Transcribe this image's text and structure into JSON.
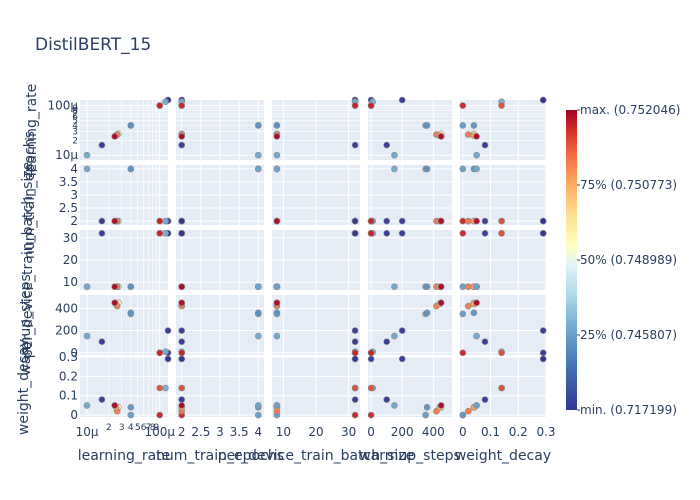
{
  "chart_data": {
    "type": "scatter",
    "subtype": "scatter-matrix",
    "title": "DistilBERT_15",
    "dimensions": [
      {
        "name": "learning_rate",
        "scale": "log",
        "range": [
          8e-06,
          0.00013
        ],
        "ticks": [
          {
            "v": 1e-05,
            "label": "10μ"
          },
          {
            "v": 0.0001,
            "label": "100μ"
          }
        ],
        "minor_ticks": [
          {
            "v": 2e-05,
            "label": "2"
          },
          {
            "v": 3e-05,
            "label": "3"
          },
          {
            "v": 4e-05,
            "label": "4"
          },
          {
            "v": 5e-05,
            "label": "5"
          },
          {
            "v": 6e-05,
            "label": "6"
          },
          {
            "v": 7e-05,
            "label": "7"
          },
          {
            "v": 8e-05,
            "label": "8"
          },
          {
            "v": 9e-05,
            "label": "9"
          }
        ]
      },
      {
        "name": "num_train_epochs",
        "scale": "linear",
        "range": [
          1.85,
          4.15
        ],
        "ticks": [
          {
            "v": 2,
            "label": "2"
          },
          {
            "v": 2.5,
            "label": "2.5"
          },
          {
            "v": 3,
            "label": "3"
          },
          {
            "v": 3.5,
            "label": "3.5"
          },
          {
            "v": 4,
            "label": "4"
          }
        ]
      },
      {
        "name": "per_device_train_batch_size",
        "scale": "linear",
        "range": [
          6.5,
          33.5
        ],
        "ticks": [
          {
            "v": 10,
            "label": "10"
          },
          {
            "v": 20,
            "label": "20"
          },
          {
            "v": 30,
            "label": "30"
          }
        ]
      },
      {
        "name": "warmup_steps",
        "scale": "linear",
        "range": [
          -20,
          520
        ],
        "ticks": [
          {
            "v": 0,
            "label": "0"
          },
          {
            "v": 200,
            "label": "200"
          },
          {
            "v": 400,
            "label": "400"
          }
        ]
      },
      {
        "name": "weight_decay",
        "scale": "linear",
        "range": [
          -0.01,
          0.3
        ],
        "ticks": [
          {
            "v": 0,
            "label": "0"
          },
          {
            "v": 0.1,
            "label": "0.1"
          },
          {
            "v": 0.2,
            "label": "0.2"
          },
          {
            "v": 0.3,
            "label": "0.3"
          }
        ]
      }
    ],
    "colorbar": {
      "min": 0.717199,
      "max": 0.752046,
      "labels": [
        {
          "frac": 1.0,
          "label": "max. (0.752046)"
        },
        {
          "frac": 0.75,
          "label": "75% (0.750773)"
        },
        {
          "frac": 0.5,
          "label": "50% (0.748989)"
        },
        {
          "frac": 0.25,
          "label": "25% (0.745807)"
        },
        {
          "frac": 0.0,
          "label": "min. (0.717199)"
        }
      ]
    },
    "points": [
      {
        "lr": 0.00013,
        "ep": 2,
        "bs": 32,
        "wu": 0,
        "wd": 0.29,
        "score": 0.7172
      },
      {
        "lr": 0.00013,
        "ep": 2,
        "bs": 32,
        "wu": 200,
        "wd": 0.29,
        "score": 0.7172
      },
      {
        "lr": 0.00012,
        "ep": 2,
        "bs": 32,
        "wu": 10,
        "wd": 0.14,
        "score": 0.7462
      },
      {
        "lr": 0.0001,
        "ep": 2,
        "bs": 32,
        "wu": 0,
        "wd": 0.14,
        "score": 0.7515
      },
      {
        "lr": 0.0001,
        "ep": 2,
        "bs": 32,
        "wu": 0,
        "wd": 0.0,
        "score": 0.7518
      },
      {
        "lr": 4e-05,
        "ep": 4,
        "bs": 8,
        "wu": 350,
        "wd": 0.0,
        "score": 0.7445
      },
      {
        "lr": 4e-05,
        "ep": 4,
        "bs": 8,
        "wu": 360,
        "wd": 0.04,
        "score": 0.742
      },
      {
        "lr": 2.7e-05,
        "ep": 2,
        "bs": 8,
        "wu": 450,
        "wd": 0.04,
        "score": 0.7495
      },
      {
        "lr": 2.6e-05,
        "ep": 2,
        "bs": 8,
        "wu": 420,
        "wd": 0.02,
        "score": 0.7512
      },
      {
        "lr": 2.5e-05,
        "ep": 2,
        "bs": 8,
        "wu": 440,
        "wd": 0.04,
        "score": 0.7509
      },
      {
        "lr": 2.4e-05,
        "ep": 2,
        "bs": 8,
        "wu": 450,
        "wd": 0.05,
        "score": 0.752
      },
      {
        "lr": 1.6e-05,
        "ep": 2,
        "bs": 32,
        "wu": 100,
        "wd": 0.08,
        "score": 0.7172
      },
      {
        "lr": 1e-05,
        "ep": 4,
        "bs": 8,
        "wu": 150,
        "wd": 0.05,
        "score": 0.746
      }
    ]
  }
}
